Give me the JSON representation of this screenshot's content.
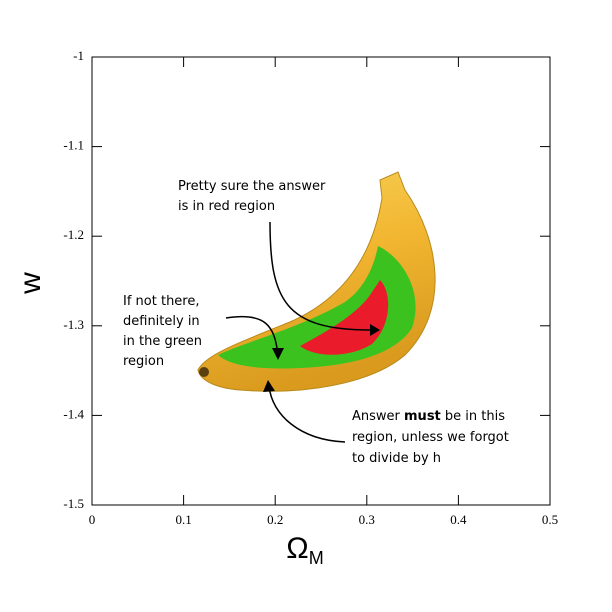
{
  "chart_data": {
    "type": "contour",
    "xlabel": "ΩM",
    "ylabel": "w",
    "xlim": [
      0,
      0.5
    ],
    "ylim": [
      -1.5,
      -1
    ],
    "xticks": [
      0,
      0.1,
      0.2,
      0.3,
      0.4,
      0.5
    ],
    "yticks": [
      -1.5,
      -1.4,
      -1.3,
      -1.2,
      -1.1,
      -1
    ],
    "annotations": [
      {
        "lines": [
          "Pretty sure the answer",
          "is in red region"
        ]
      },
      {
        "lines": [
          "If not there,",
          "definitely in",
          "in the green",
          "region"
        ]
      },
      {
        "lines": [
          [
            "Answer ",
            "must",
            " be in this"
          ],
          "region, unless we forgot",
          "to divide by h"
        ]
      }
    ]
  }
}
